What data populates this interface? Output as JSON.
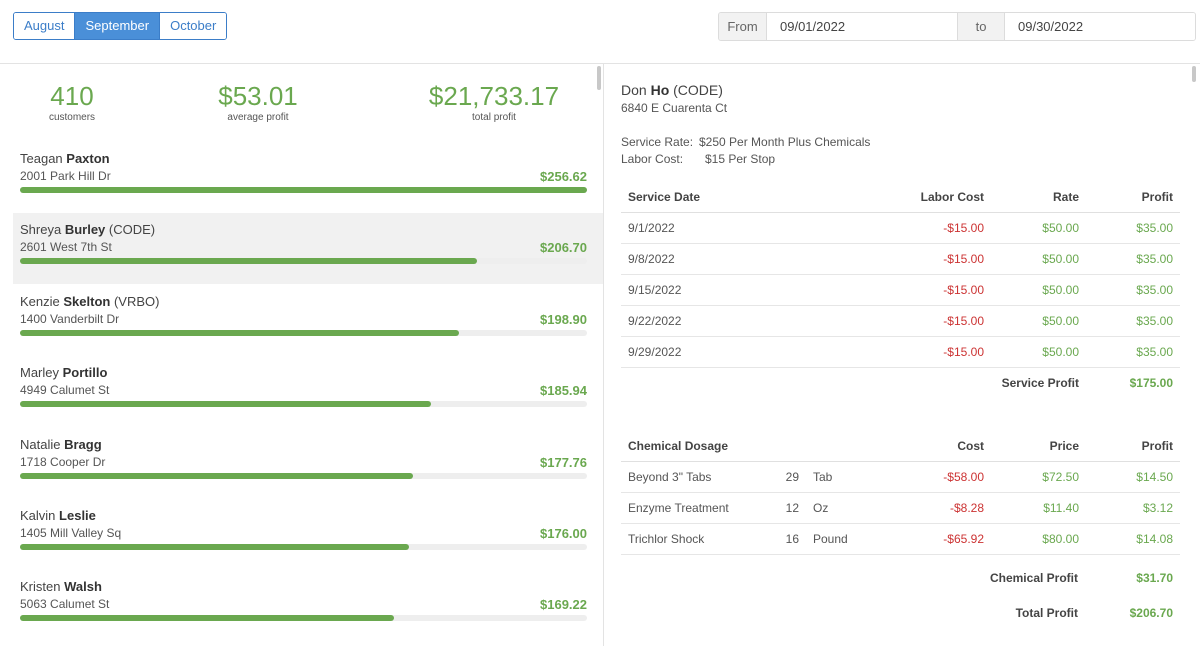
{
  "months": {
    "prev": "August",
    "current": "September",
    "next": "October"
  },
  "range": {
    "from_label": "From",
    "from_value": "09/01/2022",
    "to_label": "to",
    "to_value": "09/30/2022"
  },
  "summary": {
    "customers_value": "410",
    "customers_label": "customers",
    "avg_value": "$53.01",
    "avg_label": "average profit",
    "total_value": "$21,733.17",
    "total_label": "total profit"
  },
  "customers": [
    {
      "first": "Teagan",
      "last": "Paxton",
      "tag": "",
      "address": "2001 Park Hill Dr",
      "profit": "$256.62",
      "bar": 1.0
    },
    {
      "first": "Shreya",
      "last": "Burley",
      "tag": "(CODE)",
      "address": "2601 West 7th St",
      "profit": "$206.70",
      "bar": 0.806
    },
    {
      "first": "Kenzie",
      "last": "Skelton",
      "tag": "(VRBO)",
      "address": "1400 Vanderbilt Dr",
      "profit": "$198.90",
      "bar": 0.775
    },
    {
      "first": "Marley",
      "last": "Portillo",
      "tag": "",
      "address": "4949 Calumet St",
      "profit": "$185.94",
      "bar": 0.725
    },
    {
      "first": "Natalie",
      "last": "Bragg",
      "tag": "",
      "address": "1718 Cooper Dr",
      "profit": "$177.76",
      "bar": 0.693
    },
    {
      "first": "Kalvin",
      "last": "Leslie",
      "tag": "",
      "address": "1405 Mill Valley Sq",
      "profit": "$176.00",
      "bar": 0.686
    },
    {
      "first": "Kristen",
      "last": "Walsh",
      "tag": "",
      "address": "5063 Calumet St",
      "profit": "$169.22",
      "bar": 0.66
    }
  ],
  "detail": {
    "first": "Don",
    "last": "Ho",
    "tag": "(CODE)",
    "address": "6840 E Cuarenta Ct",
    "service_rate_label": "Service Rate:",
    "service_rate": "$250 Per Month Plus Chemicals",
    "labor_cost_label": "Labor Cost:",
    "labor_cost": "$15 Per Stop",
    "service_headers": {
      "date": "Service Date",
      "labor": "Labor Cost",
      "rate": "Rate",
      "profit": "Profit"
    },
    "services": [
      {
        "date": "9/1/2022",
        "labor": "-$15.00",
        "rate": "$50.00",
        "profit": "$35.00"
      },
      {
        "date": "9/8/2022",
        "labor": "-$15.00",
        "rate": "$50.00",
        "profit": "$35.00"
      },
      {
        "date": "9/15/2022",
        "labor": "-$15.00",
        "rate": "$50.00",
        "profit": "$35.00"
      },
      {
        "date": "9/22/2022",
        "labor": "-$15.00",
        "rate": "$50.00",
        "profit": "$35.00"
      },
      {
        "date": "9/29/2022",
        "labor": "-$15.00",
        "rate": "$50.00",
        "profit": "$35.00"
      }
    ],
    "service_profit_label": "Service Profit",
    "service_profit": "$175.00",
    "chem_headers": {
      "name": "Chemical Dosage",
      "cost": "Cost",
      "price": "Price",
      "profit": "Profit"
    },
    "chemicals": [
      {
        "name": "Beyond 3\" Tabs",
        "qty": "29",
        "unit": "Tab",
        "cost": "-$58.00",
        "price": "$72.50",
        "profit": "$14.50"
      },
      {
        "name": "Enzyme Treatment",
        "qty": "12",
        "unit": "Oz",
        "cost": "-$8.28",
        "price": "$11.40",
        "profit": "$3.12"
      },
      {
        "name": "Trichlor Shock",
        "qty": "16",
        "unit": "Pound",
        "cost": "-$65.92",
        "price": "$80.00",
        "profit": "$14.08"
      }
    ],
    "chem_profit_label": "Chemical Profit",
    "chem_profit": "$31.70",
    "total_profit_label": "Total Profit",
    "total_profit": "$206.70"
  }
}
